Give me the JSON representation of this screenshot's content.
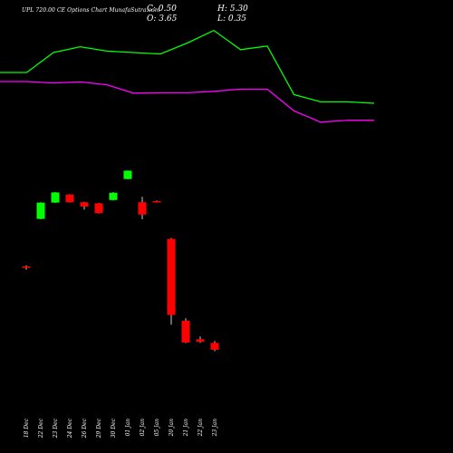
{
  "header": {
    "title": "UPL 720.00 CE Options Chart MunafaSutra.com",
    "close": "C: 0.50",
    "open": "O: 3.65",
    "high": "H: 5.30",
    "low": "L: 0.35"
  },
  "chart_data": {
    "type": "candlestick",
    "categories": [
      "18 Dec",
      "22 Dec",
      "23 Dec",
      "24 Dec",
      "26 Dec",
      "29 Dec",
      "30 Dec",
      "01 Jan",
      "02 Jan",
      "05 Jan",
      "20 Jan",
      "21 Jan",
      "22 Jan",
      "23 Jan"
    ],
    "candles": [
      {
        "open": 42.0,
        "high": 42.3,
        "low": 41.1,
        "close": 41.6
      },
      {
        "open": 55.1,
        "high": 59.7,
        "low": 55.0,
        "close": 59.6
      },
      {
        "open": 59.6,
        "high": 62.5,
        "low": 59.5,
        "close": 62.4
      },
      {
        "open": 61.8,
        "high": 61.9,
        "low": 59.6,
        "close": 59.7
      },
      {
        "open": 59.7,
        "high": 59.8,
        "low": 57.7,
        "close": 58.5
      },
      {
        "open": 59.4,
        "high": 59.5,
        "low": 56.6,
        "close": 56.7
      },
      {
        "open": 60.3,
        "high": 62.5,
        "low": 60.2,
        "close": 62.3
      },
      {
        "open": 66.1,
        "high": 68.5,
        "low": 66.0,
        "close": 68.4
      },
      {
        "open": 59.7,
        "high": 61.2,
        "low": 55.0,
        "close": 56.3
      },
      {
        "open": 60.0,
        "high": 60.2,
        "low": 59.8,
        "close": 59.9
      },
      {
        "open": 49.6,
        "high": 49.8,
        "low": 25.9,
        "close": 28.6
      },
      {
        "open": 27.0,
        "high": 27.7,
        "low": 20.8,
        "close": 21.0
      },
      {
        "open": 21.9,
        "high": 22.7,
        "low": 20.9,
        "close": 21.2
      },
      {
        "open": 20.9,
        "high": 21.4,
        "low": 18.6,
        "close": 19.0
      }
    ],
    "upper_line": {
      "color": "#00ff00",
      "values": [
        95.5,
        95.5,
        101.0,
        102.6,
        101.4,
        101.0,
        100.6,
        103.6,
        107.1,
        101.8,
        102.8,
        89.4,
        87.4,
        87.4,
        87.0
      ]
    },
    "lower_line": {
      "color": "#ff00ff",
      "values": [
        93.0,
        93.0,
        92.6,
        92.9,
        92.1,
        89.8,
        89.9,
        89.9,
        90.3,
        90.9,
        90.9,
        84.9,
        81.8,
        82.3,
        82.3
      ]
    },
    "ylim": [
      0,
      110
    ],
    "up_color": "#00ff00",
    "down_color": "#ff0000"
  }
}
